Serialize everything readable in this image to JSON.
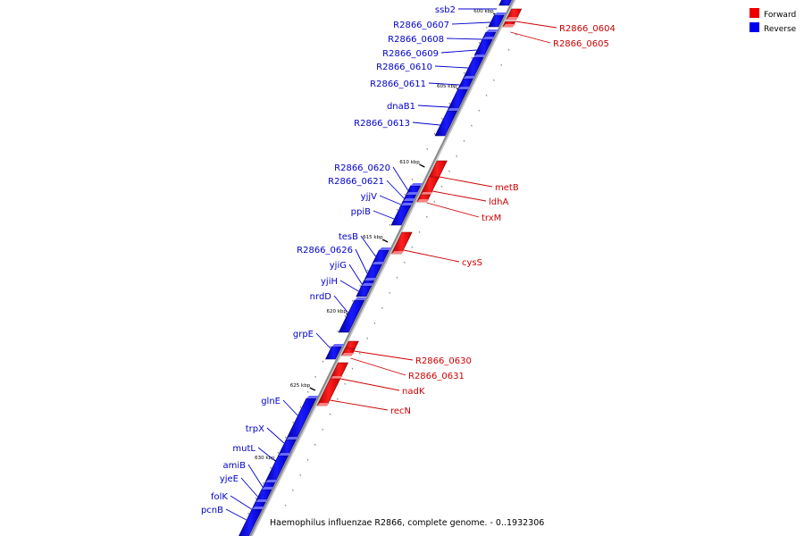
{
  "footer": "Haemophilus influenzae R2866, complete genome. - 0..1932306",
  "legend": [
    {
      "label": "Forward",
      "color": "#ee0000"
    },
    {
      "label": "Reverse",
      "color": "#0000ee"
    }
  ],
  "colors": {
    "forward": "#ee0000",
    "reverse": "#0000ee",
    "axis": "#777777"
  },
  "scale_labels": [
    "600 kbp",
    "605 kbp",
    "610 kbp",
    "615 kbp",
    "620 kbp",
    "625 kbp",
    "630 kbp"
  ],
  "genes_reverse": [
    "ssb2",
    "R2866_0607",
    "R2866_0608",
    "R2866_0609",
    "R2866_0610",
    "R2866_0611",
    "dnaB1",
    "R2866_0613",
    "R2866_0620",
    "R2866_0621",
    "yjjV",
    "ppiB",
    "tesB",
    "R2866_0626",
    "yjiG",
    "yjiH",
    "nrdD",
    "grpE",
    "glnE",
    "trpX",
    "mutL",
    "amiB",
    "yjeE",
    "folK",
    "pcnB"
  ],
  "genes_forward": [
    "R2866_0604",
    "R2866_0605",
    "metB",
    "ldhA",
    "trxM",
    "cysS",
    "R2866_0630",
    "R2866_0631",
    "nadK",
    "recN"
  ]
}
